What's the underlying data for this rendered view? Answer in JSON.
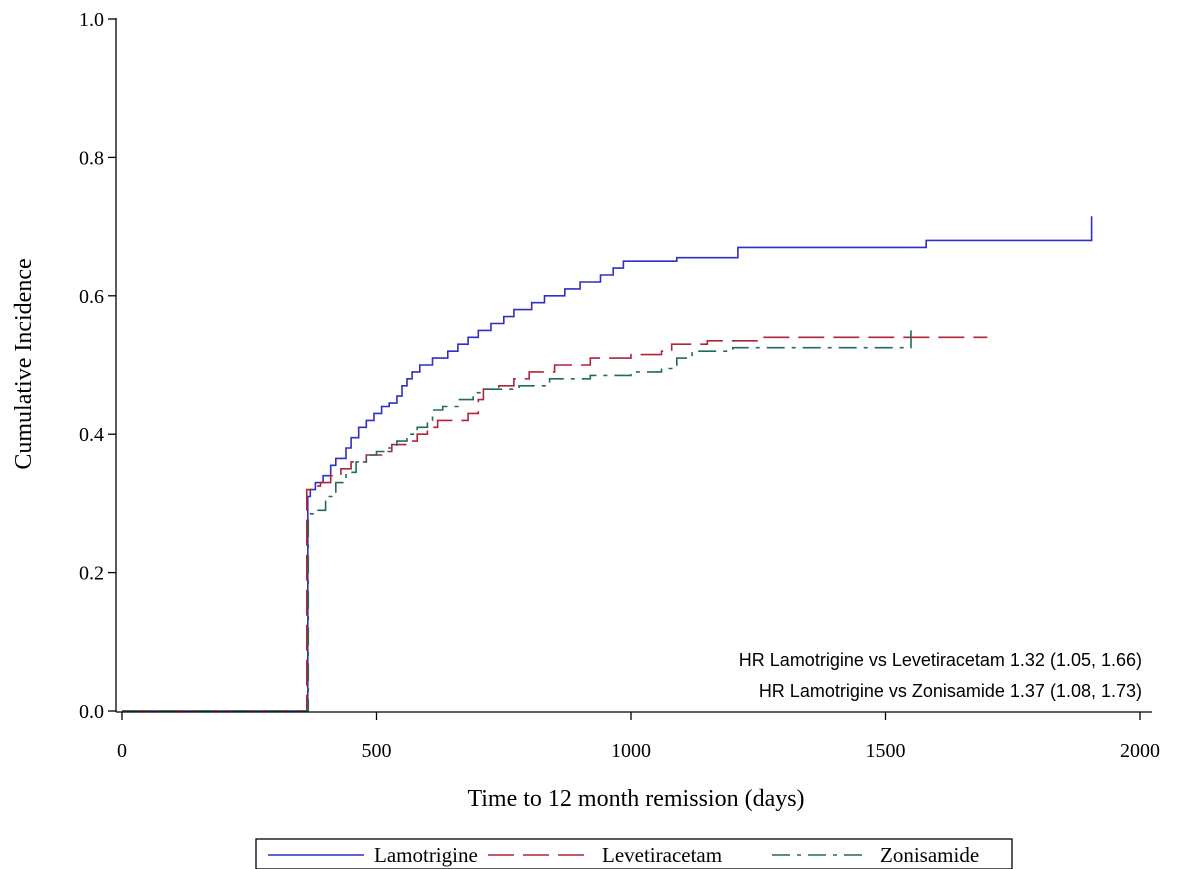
{
  "chart_data": {
    "type": "line",
    "step": true,
    "xlabel": "Time to 12 month remission (days)",
    "ylabel": "Cumulative Incidence",
    "xlim": [
      0,
      2000
    ],
    "ylim": [
      0,
      1.0
    ],
    "xticks": [
      0,
      500,
      1000,
      1500,
      2000
    ],
    "xtick_labels": [
      "0",
      "500",
      "1000",
      "1500",
      "2000"
    ],
    "yticks": [
      0,
      0.2,
      0.4,
      0.6,
      0.8,
      1.0
    ],
    "ytick_labels": [
      "0.0",
      "0.2",
      "0.4",
      "0.6",
      "0.8",
      "1.0"
    ],
    "grid": false,
    "legend_position": "bottom",
    "annotations": [
      "HR Lamotrigine vs Levetiracetam 1.32 (1.05, 1.66)",
      "HR Lamotrigine vs Zonisamide 1.37 (1.08, 1.73)"
    ],
    "series": [
      {
        "name": "Lamotrigine",
        "color": "#2f2fc8",
        "dash": "solid",
        "points": [
          [
            0,
            0
          ],
          [
            365,
            0
          ],
          [
            365,
            0.31
          ],
          [
            370,
            0.32
          ],
          [
            380,
            0.33
          ],
          [
            395,
            0.34
          ],
          [
            410,
            0.355
          ],
          [
            420,
            0.365
          ],
          [
            440,
            0.38
          ],
          [
            450,
            0.395
          ],
          [
            465,
            0.41
          ],
          [
            480,
            0.42
          ],
          [
            495,
            0.43
          ],
          [
            510,
            0.44
          ],
          [
            525,
            0.445
          ],
          [
            540,
            0.455
          ],
          [
            550,
            0.47
          ],
          [
            560,
            0.48
          ],
          [
            570,
            0.49
          ],
          [
            585,
            0.5
          ],
          [
            610,
            0.51
          ],
          [
            640,
            0.52
          ],
          [
            660,
            0.53
          ],
          [
            680,
            0.54
          ],
          [
            700,
            0.55
          ],
          [
            725,
            0.56
          ],
          [
            750,
            0.57
          ],
          [
            770,
            0.58
          ],
          [
            805,
            0.59
          ],
          [
            830,
            0.6
          ],
          [
            870,
            0.61
          ],
          [
            900,
            0.62
          ],
          [
            940,
            0.63
          ],
          [
            965,
            0.64
          ],
          [
            985,
            0.65
          ],
          [
            1090,
            0.655
          ],
          [
            1210,
            0.67
          ],
          [
            1580,
            0.68
          ],
          [
            1905,
            0.68
          ],
          [
            1905,
            0.715
          ]
        ]
      },
      {
        "name": "Levetiracetam",
        "color": "#b0243a",
        "dash": "long-dash",
        "points": [
          [
            0,
            0
          ],
          [
            363,
            0
          ],
          [
            363,
            0.32
          ],
          [
            375,
            0.325
          ],
          [
            390,
            0.33
          ],
          [
            410,
            0.34
          ],
          [
            430,
            0.35
          ],
          [
            450,
            0.36
          ],
          [
            480,
            0.37
          ],
          [
            510,
            0.375
          ],
          [
            530,
            0.385
          ],
          [
            560,
            0.39
          ],
          [
            580,
            0.4
          ],
          [
            600,
            0.41
          ],
          [
            620,
            0.42
          ],
          [
            680,
            0.43
          ],
          [
            700,
            0.45
          ],
          [
            710,
            0.465
          ],
          [
            740,
            0.47
          ],
          [
            770,
            0.48
          ],
          [
            800,
            0.49
          ],
          [
            850,
            0.5
          ],
          [
            920,
            0.51
          ],
          [
            1000,
            0.515
          ],
          [
            1060,
            0.52
          ],
          [
            1080,
            0.53
          ],
          [
            1150,
            0.535
          ],
          [
            1250,
            0.54
          ],
          [
            1700,
            0.54
          ]
        ]
      },
      {
        "name": "Zonisamide",
        "color": "#1f6b5e",
        "dash": "dash-dot",
        "points": [
          [
            0,
            0
          ],
          [
            366,
            0
          ],
          [
            366,
            0.285
          ],
          [
            385,
            0.29
          ],
          [
            400,
            0.31
          ],
          [
            420,
            0.33
          ],
          [
            440,
            0.345
          ],
          [
            460,
            0.36
          ],
          [
            480,
            0.37
          ],
          [
            500,
            0.375
          ],
          [
            520,
            0.38
          ],
          [
            540,
            0.39
          ],
          [
            560,
            0.4
          ],
          [
            580,
            0.41
          ],
          [
            600,
            0.42
          ],
          [
            610,
            0.435
          ],
          [
            630,
            0.44
          ],
          [
            660,
            0.45
          ],
          [
            690,
            0.46
          ],
          [
            710,
            0.465
          ],
          [
            780,
            0.47
          ],
          [
            840,
            0.48
          ],
          [
            920,
            0.485
          ],
          [
            1000,
            0.49
          ],
          [
            1060,
            0.495
          ],
          [
            1090,
            0.51
          ],
          [
            1120,
            0.52
          ],
          [
            1200,
            0.525
          ],
          [
            1550,
            0.525
          ],
          [
            1550,
            0.55
          ]
        ]
      }
    ]
  }
}
